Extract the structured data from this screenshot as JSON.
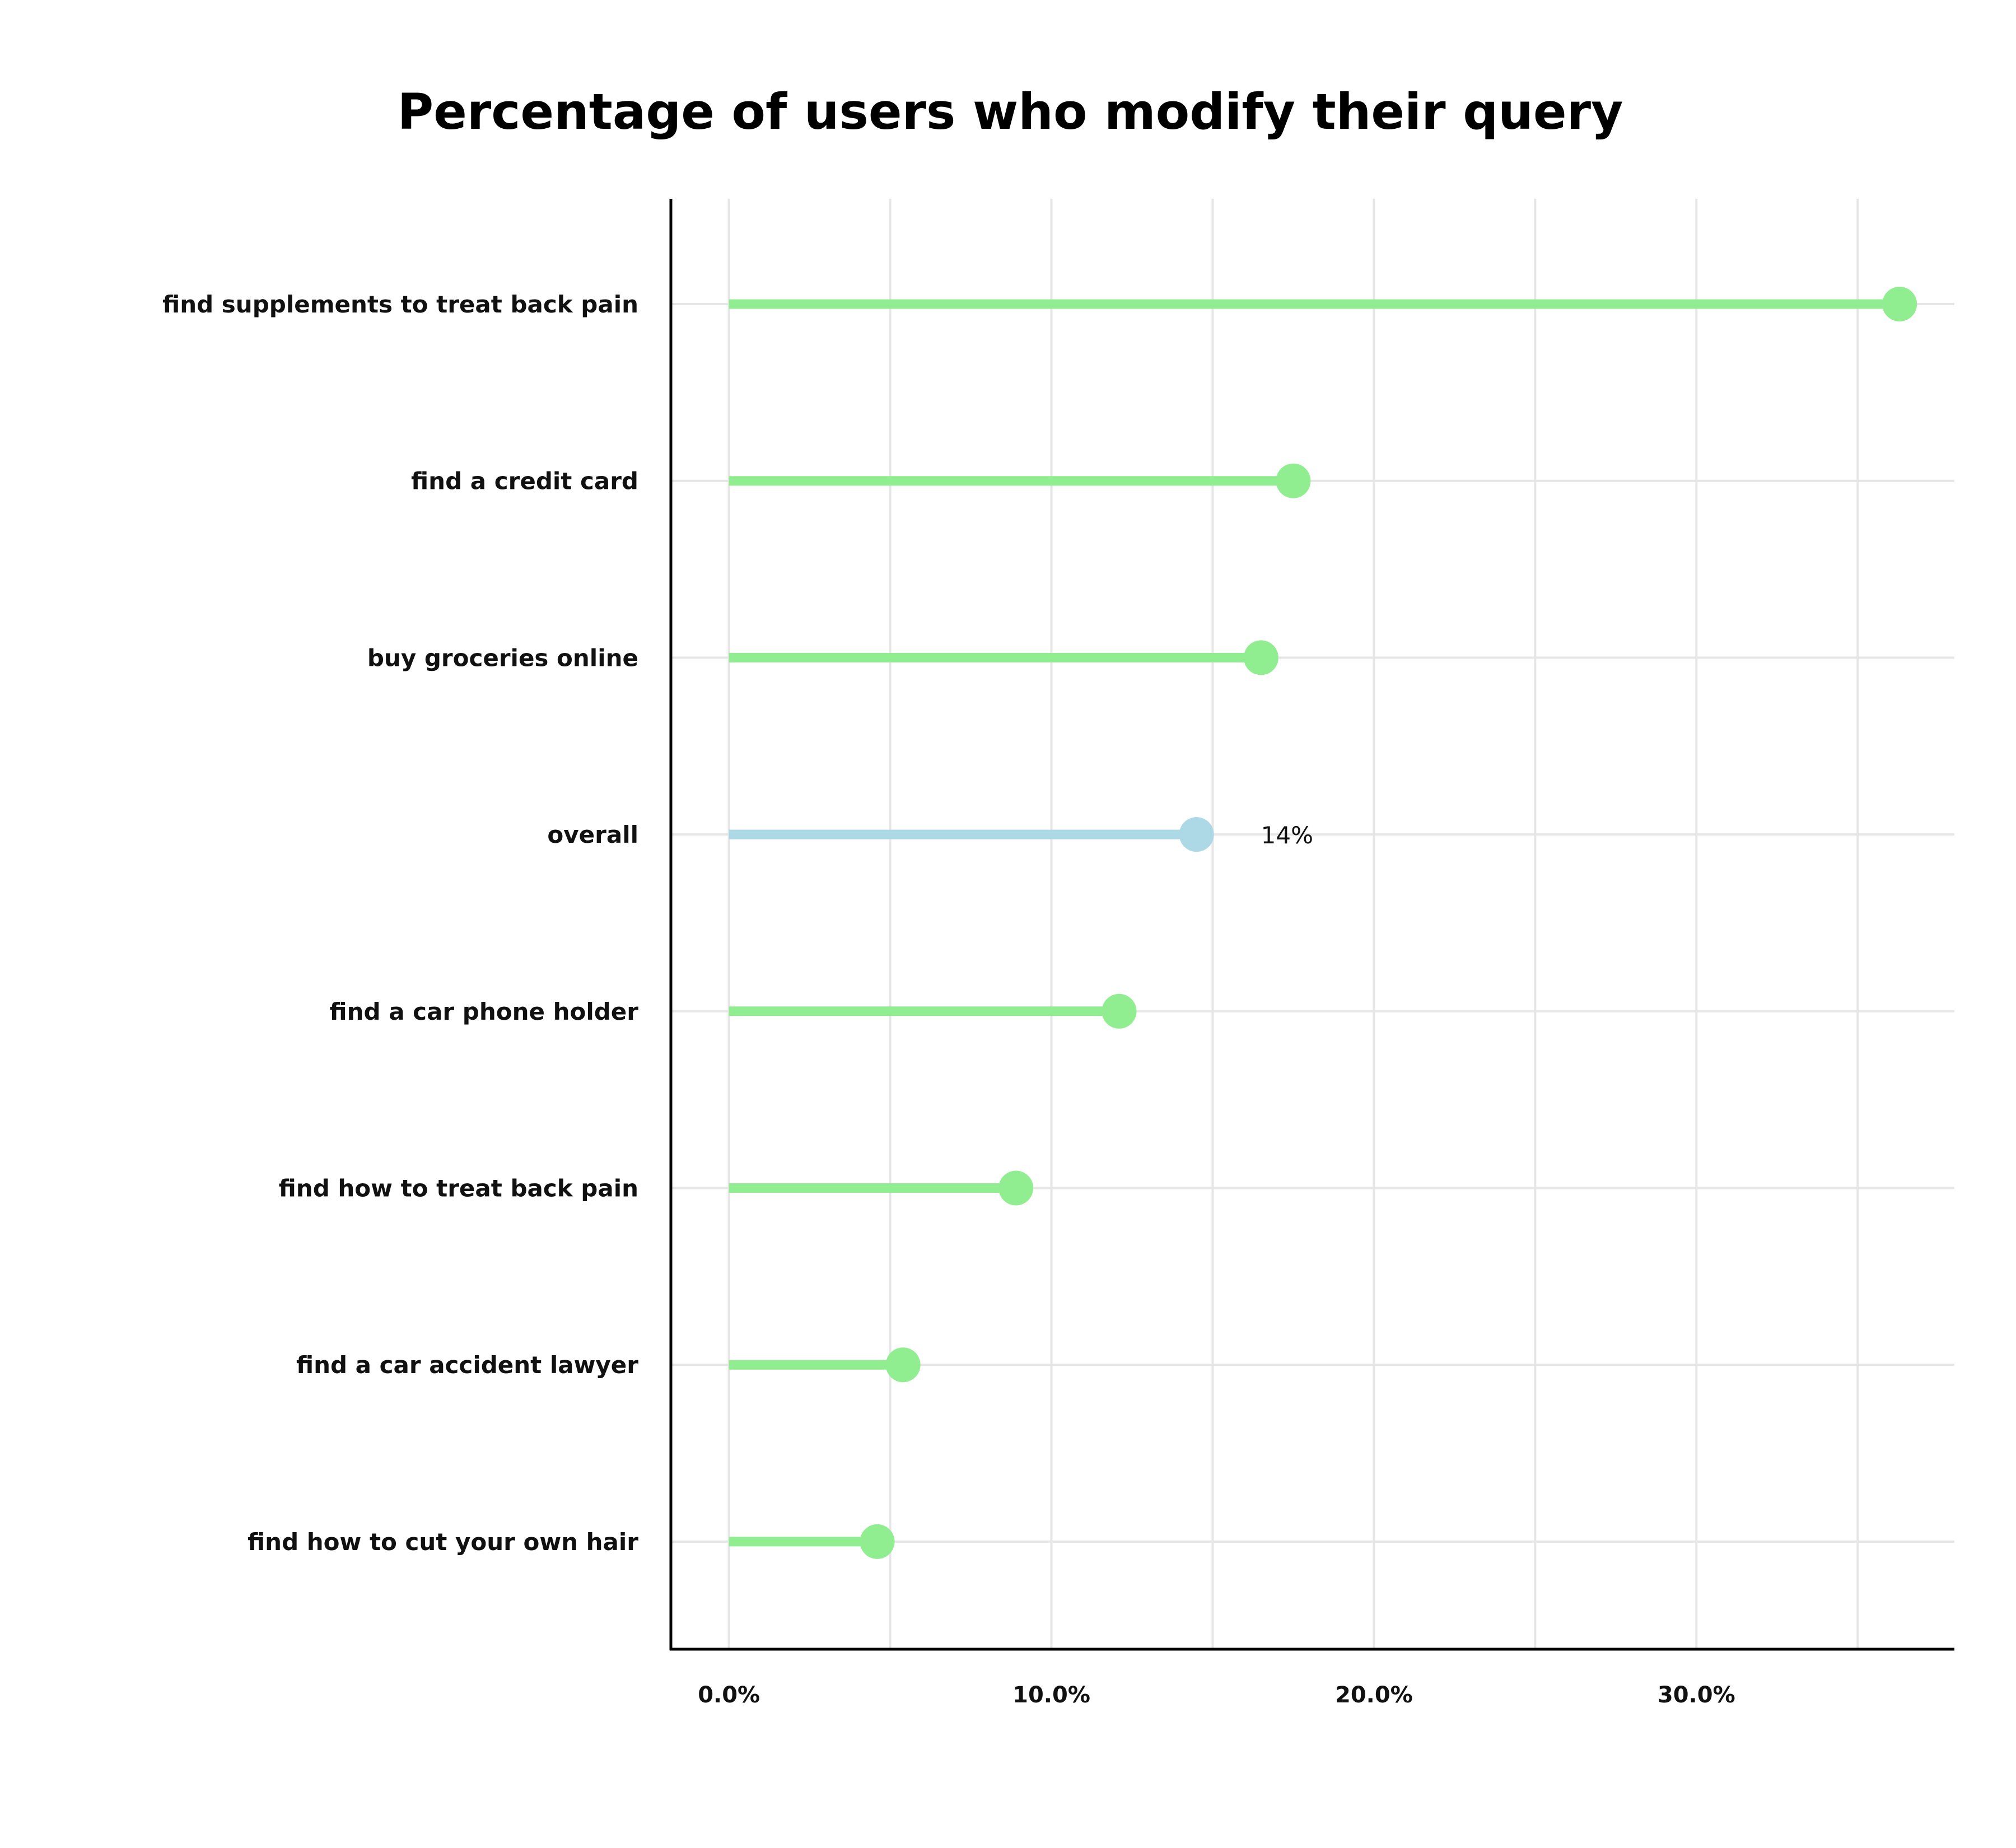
{
  "chart_data": {
    "type": "lollipop",
    "title": "Percentage of users who modify their query",
    "xlabel": "",
    "ylabel": "",
    "xlim": [
      -1.8,
      38.0
    ],
    "x_ticks": [
      0,
      10,
      20,
      30
    ],
    "x_tick_labels": [
      "0.0%",
      "10.0%",
      "20.0%",
      "30.0%"
    ],
    "vertical_gridlines": [
      0,
      5,
      10,
      15,
      20,
      25,
      30,
      35
    ],
    "grid": true,
    "legend": "none",
    "categories": [
      "find supplements to treat back pain",
      "find a credit card",
      "buy groceries online",
      "overall",
      "find a car phone holder",
      "find how to treat back pain",
      "find a car accident lawyer",
      "find how to cut your own hair"
    ],
    "values": [
      36.3,
      17.5,
      16.5,
      14.5,
      12.1,
      8.9,
      5.4,
      4.6
    ],
    "highlight_category": "overall",
    "annotations": [
      {
        "category": "overall",
        "text": "14%"
      }
    ]
  },
  "colors": {
    "default_series": "#90ee90",
    "highlight_series": "#add8e6",
    "grid": "#e6e6e6",
    "axis": "#000000",
    "text": "#111111"
  }
}
